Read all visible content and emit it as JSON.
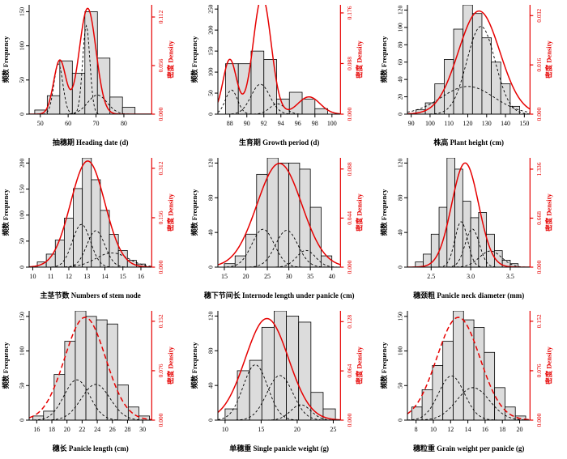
{
  "figure": {
    "description": "3x3 grid of trait frequency histograms with fitted density curves",
    "background": "#ffffff",
    "colors": {
      "bar_fill": "#dcdcdc",
      "bar_stroke": "#000000",
      "density_color": "#e60000",
      "component_color": "#000000",
      "axis_color": "#000000",
      "right_axis_color": "#e60000"
    },
    "ylabel_left": "频数 Frequency",
    "ylabel_right": "密度 Density"
  },
  "chart_data": [
    {
      "id": "heading-date",
      "type": "histogram+density",
      "xlabel": "抽穗期 Heading date (d)",
      "ylabel_left": "频数 Frequency",
      "ylabel_right": "密度 Density",
      "xlim": [
        46,
        90
      ],
      "xticks": [
        {
          "v": 50,
          "label": "50"
        },
        {
          "v": 60,
          "label": "60"
        },
        {
          "v": 70,
          "label": "70"
        },
        {
          "v": 80,
          "label": "80"
        }
      ],
      "ylim_left": [
        0,
        160
      ],
      "yticks_left": [
        {
          "v": 0,
          "label": "0"
        },
        {
          "v": 50,
          "label": "50"
        },
        {
          "v": 100,
          "label": "100"
        },
        {
          "v": 150,
          "label": "150"
        }
      ],
      "ylim_right": [
        0,
        0.126
      ],
      "yticks_right": [
        {
          "v": 0,
          "label": "0.000"
        },
        {
          "v": 0.056,
          "label": "0.056"
        },
        {
          "v": 0.112,
          "label": "0.112"
        }
      ],
      "bars": {
        "start": 48,
        "bin_width": 4.5,
        "frequencies": [
          6,
          27,
          78,
          60,
          150,
          82,
          25,
          10
        ]
      },
      "density_curve": {
        "dashed": false,
        "components": [
          {
            "mean": 57,
            "sd": 2.2,
            "peak": 0.062
          },
          {
            "mean": 67,
            "sd": 3.0,
            "peak": 0.122
          }
        ]
      },
      "mixture_components": [
        {
          "mean": 56.5,
          "sd": 1.6,
          "peak": 0.058
        },
        {
          "mean": 66.5,
          "sd": 1.3,
          "peak": 0.102
        },
        {
          "mean": 70.5,
          "sd": 3.5,
          "peak": 0.022
        }
      ]
    },
    {
      "id": "growth-period",
      "type": "histogram+density",
      "xlabel": "生育期 Growth period (d)",
      "ylabel_left": "频数 Frequency",
      "ylabel_right": "密度 Density",
      "xlim": [
        86.6,
        101
      ],
      "xticks": [
        {
          "v": 88,
          "label": "88"
        },
        {
          "v": 90,
          "label": "90"
        },
        {
          "v": 92,
          "label": "92"
        },
        {
          "v": 94,
          "label": "94"
        },
        {
          "v": 96,
          "label": "96"
        },
        {
          "v": 98,
          "label": "98"
        },
        {
          "v": 100,
          "label": "100"
        }
      ],
      "ylim_left": [
        0,
        260
      ],
      "yticks_left": [
        {
          "v": 0,
          "label": "0"
        },
        {
          "v": 50,
          "label": "50"
        },
        {
          "v": 100,
          "label": "100"
        },
        {
          "v": 150,
          "label": "150"
        },
        {
          "v": 200,
          "label": "200"
        },
        {
          "v": 250,
          "label": "250"
        }
      ],
      "ylim_right": [
        0,
        0.19
      ],
      "yticks_right": [
        {
          "v": 0,
          "label": "0.000"
        },
        {
          "v": 0.088,
          "label": "0.088"
        },
        {
          "v": 0.176,
          "label": "0.176"
        }
      ],
      "bars": {
        "start": 87.5,
        "bin_width": 1.5,
        "frequencies": [
          120,
          120,
          150,
          130,
          36,
          52,
          36,
          13
        ]
      },
      "density_curve": {
        "dashed": false,
        "components": [
          {
            "mean": 88.0,
            "sd": 0.8,
            "peak": 0.095
          },
          {
            "mean": 91.8,
            "sd": 1.05,
            "peak": 0.205
          },
          {
            "mean": 97.3,
            "sd": 1.3,
            "peak": 0.03
          }
        ]
      },
      "mixture_components": [
        {
          "mean": 88.2,
          "sd": 0.7,
          "peak": 0.042
        },
        {
          "mean": 91.6,
          "sd": 1.1,
          "peak": 0.052
        },
        {
          "mean": 93.6,
          "sd": 0.9,
          "peak": 0.018
        }
      ]
    },
    {
      "id": "plant-height",
      "type": "histogram+density",
      "xlabel": "株高 Plant height (cm)",
      "ylabel_left": "频数 Frequency",
      "ylabel_right": "密度 Density",
      "xlim": [
        88,
        153
      ],
      "xticks": [
        {
          "v": 90,
          "label": "90"
        },
        {
          "v": 100,
          "label": "100"
        },
        {
          "v": 110,
          "label": "110"
        },
        {
          "v": 120,
          "label": "120"
        },
        {
          "v": 130,
          "label": "130"
        },
        {
          "v": 140,
          "label": "140"
        },
        {
          "v": 150,
          "label": "150"
        }
      ],
      "ylim_left": [
        0,
        126
      ],
      "yticks_left": [
        {
          "v": 0,
          "label": "0"
        },
        {
          "v": 20,
          "label": "20"
        },
        {
          "v": 40,
          "label": "40"
        },
        {
          "v": 60,
          "label": "60"
        },
        {
          "v": 80,
          "label": "80"
        },
        {
          "v": 100,
          "label": "100"
        },
        {
          "v": 120,
          "label": "120"
        }
      ],
      "ylim_right": [
        0,
        0.0355
      ],
      "yticks_right": [
        {
          "v": 0,
          "label": "0.000"
        },
        {
          "v": 0.016,
          "label": "0.016"
        },
        {
          "v": 0.032,
          "label": "0.032"
        }
      ],
      "bars": {
        "start": 92.5,
        "bin_width": 5,
        "frequencies": [
          5,
          13,
          35,
          63,
          98,
          126,
          116,
          88,
          60,
          35,
          9
        ]
      },
      "density_curve": {
        "dashed": false,
        "components": [
          {
            "mean": 126,
            "sd": 11,
            "peak": 0.0335
          }
        ]
      },
      "mixture_components": [
        {
          "mean": 127,
          "sd": 7.5,
          "peak": 0.0285
        },
        {
          "mean": 120,
          "sd": 14,
          "peak": 0.009
        }
      ]
    },
    {
      "id": "stem-node-number",
      "type": "histogram+density",
      "xlabel": "主茎节数 Numbers of stem node",
      "ylabel_left": "频数 Frequency",
      "ylabel_right": "密度 Density",
      "xlim": [
        9.8,
        16.6
      ],
      "xticks": [
        {
          "v": 10,
          "label": "10"
        },
        {
          "v": 11,
          "label": "11"
        },
        {
          "v": 12,
          "label": "12"
        },
        {
          "v": 13,
          "label": "13"
        },
        {
          "v": 14,
          "label": "14"
        },
        {
          "v": 15,
          "label": "15"
        },
        {
          "v": 16,
          "label": "16"
        }
      ],
      "ylim_left": [
        0,
        210
      ],
      "yticks_left": [
        {
          "v": 0,
          "label": "0"
        },
        {
          "v": 50,
          "label": "50"
        },
        {
          "v": 100,
          "label": "100"
        },
        {
          "v": 150,
          "label": "150"
        },
        {
          "v": 200,
          "label": "200"
        }
      ],
      "ylim_right": [
        0,
        0.345
      ],
      "yticks_right": [
        {
          "v": 0,
          "label": "0.000"
        },
        {
          "v": 0.156,
          "label": "0.156"
        },
        {
          "v": 0.312,
          "label": "0.312"
        }
      ],
      "bars": {
        "start": 10.25,
        "bin_width": 0.5,
        "frequencies": [
          10,
          25,
          52,
          94,
          151,
          210,
          168,
          109,
          63,
          32,
          13,
          6
        ]
      },
      "density_curve": {
        "dashed": false,
        "components": [
          {
            "mean": 13.05,
            "sd": 0.95,
            "peak": 0.335
          }
        ]
      },
      "mixture_components": [
        {
          "mean": 12.7,
          "sd": 0.5,
          "peak": 0.135
        },
        {
          "mean": 13.5,
          "sd": 0.5,
          "peak": 0.115
        },
        {
          "mean": 14.4,
          "sd": 0.9,
          "peak": 0.045
        }
      ]
    },
    {
      "id": "internode-length",
      "type": "histogram+density",
      "xlabel": "穗下节间长 Internode length under panicle (cm)",
      "ylabel_left": "频数 Frequency",
      "ylabel_right": "密度 Density",
      "xlim": [
        13.5,
        42
      ],
      "xticks": [
        {
          "v": 15,
          "label": "15"
        },
        {
          "v": 20,
          "label": "20"
        },
        {
          "v": 25,
          "label": "25"
        },
        {
          "v": 30,
          "label": "30"
        },
        {
          "v": 35,
          "label": "35"
        },
        {
          "v": 40,
          "label": "40"
        }
      ],
      "ylim_left": [
        0,
        126
      ],
      "yticks_left": [
        {
          "v": 0,
          "label": "0"
        },
        {
          "v": 40,
          "label": "40"
        },
        {
          "v": 80,
          "label": "80"
        },
        {
          "v": 120,
          "label": "120"
        }
      ],
      "ylim_right": [
        0,
        0.098
      ],
      "yticks_right": [
        {
          "v": 0,
          "label": "0.000"
        },
        {
          "v": 0.044,
          "label": "0.044"
        },
        {
          "v": 0.088,
          "label": "0.088"
        }
      ],
      "bars": {
        "start": 15,
        "bin_width": 2.5,
        "frequencies": [
          4,
          13,
          38,
          107,
          126,
          120,
          120,
          113,
          69,
          13
        ]
      },
      "density_curve": {
        "dashed": false,
        "components": [
          {
            "mean": 27.8,
            "sd": 5.2,
            "peak": 0.093
          }
        ]
      },
      "mixture_components": [
        {
          "mean": 24,
          "sd": 2.6,
          "peak": 0.034
        },
        {
          "mean": 29.5,
          "sd": 2.6,
          "peak": 0.033
        },
        {
          "mean": 34,
          "sd": 2.2,
          "peak": 0.015
        }
      ]
    },
    {
      "id": "panicle-neck-diameter",
      "type": "histogram+density",
      "xlabel": "穗颈粗 Panicle neck diameter (mm)",
      "ylabel_left": "频数 Frequency",
      "ylabel_right": "密度 Density",
      "xlim": [
        2.2,
        3.75
      ],
      "xticks": [
        {
          "v": 2.5,
          "label": "2.5"
        },
        {
          "v": 3.0,
          "label": "3.0"
        },
        {
          "v": 3.5,
          "label": "3.5"
        }
      ],
      "ylim_left": [
        0,
        126
      ],
      "yticks_left": [
        {
          "v": 0,
          "label": "0"
        },
        {
          "v": 40,
          "label": "40"
        },
        {
          "v": 80,
          "label": "80"
        },
        {
          "v": 120,
          "label": "120"
        }
      ],
      "ylim_right": [
        0,
        1.49
      ],
      "yticks_right": [
        {
          "v": 0,
          "label": "0.000"
        },
        {
          "v": 0.668,
          "label": "0.668"
        },
        {
          "v": 1.336,
          "label": "1.336"
        }
      ],
      "bars": {
        "start": 2.3,
        "bin_width": 0.1,
        "frequencies": [
          6,
          15,
          38,
          69,
          126,
          113,
          76,
          57,
          63,
          38,
          19,
          8,
          4
        ]
      },
      "density_curve": {
        "dashed": false,
        "components": [
          {
            "mean": 2.93,
            "sd": 0.17,
            "peak": 1.42
          }
        ]
      },
      "mixture_components": [
        {
          "mean": 2.88,
          "sd": 0.08,
          "peak": 0.62
        },
        {
          "mean": 3.02,
          "sd": 0.09,
          "peak": 0.52
        },
        {
          "mean": 3.25,
          "sd": 0.14,
          "peak": 0.22
        }
      ]
    },
    {
      "id": "panicle-length",
      "type": "histogram+density",
      "xlabel": "穗长 Panicle length (cm)",
      "ylabel_left": "频数 Frequency",
      "ylabel_right": "密度 Density",
      "xlim": [
        15,
        31.2
      ],
      "xticks": [
        {
          "v": 16,
          "label": "16"
        },
        {
          "v": 18,
          "label": "18"
        },
        {
          "v": 20,
          "label": "20"
        },
        {
          "v": 22,
          "label": "22"
        },
        {
          "v": 24,
          "label": "24"
        },
        {
          "v": 26,
          "label": "26"
        },
        {
          "v": 28,
          "label": "28"
        },
        {
          "v": 30,
          "label": "30"
        }
      ],
      "ylim_left": [
        0,
        158
      ],
      "yticks_left": [
        {
          "v": 0,
          "label": "0"
        },
        {
          "v": 50,
          "label": "50"
        },
        {
          "v": 100,
          "label": "100"
        },
        {
          "v": 150,
          "label": "150"
        }
      ],
      "ylim_right": [
        0,
        0.168
      ],
      "yticks_right": [
        {
          "v": 0,
          "label": "0.000"
        },
        {
          "v": 0.076,
          "label": "0.076"
        },
        {
          "v": 0.152,
          "label": "0.152"
        }
      ],
      "bars": {
        "start": 15.5,
        "bin_width": 1.4,
        "frequencies": [
          6,
          13,
          66,
          114,
          158,
          150,
          145,
          139,
          51,
          19,
          6
        ]
      },
      "density_curve": {
        "dashed": true,
        "components": [
          {
            "mean": 22.4,
            "sd": 2.7,
            "peak": 0.158
          }
        ]
      },
      "mixture_components": [
        {
          "mean": 21.3,
          "sd": 1.7,
          "peak": 0.062
        },
        {
          "mean": 23.8,
          "sd": 1.9,
          "peak": 0.055
        }
      ]
    },
    {
      "id": "single-panicle-weight",
      "type": "histogram+density",
      "xlabel": "单穗重 Single panicle weight (g)",
      "ylabel_left": "频数 Frequency",
      "ylabel_right": "密度 Density",
      "xlim": [
        9,
        26
      ],
      "xticks": [
        {
          "v": 10,
          "label": "10"
        },
        {
          "v": 15,
          "label": "15"
        },
        {
          "v": 20,
          "label": "20"
        },
        {
          "v": 25,
          "label": "25"
        }
      ],
      "ylim_left": [
        0,
        126
      ],
      "yticks_left": [
        {
          "v": 0,
          "label": "0"
        },
        {
          "v": 40,
          "label": "40"
        },
        {
          "v": 80,
          "label": "80"
        },
        {
          "v": 120,
          "label": "120"
        }
      ],
      "ylim_right": [
        0,
        0.142
      ],
      "yticks_right": [
        {
          "v": 0,
          "label": "0.000"
        },
        {
          "v": 0.064,
          "label": "0.064"
        },
        {
          "v": 0.128,
          "label": "0.128"
        }
      ],
      "bars": {
        "start": 10,
        "bin_width": 1.7,
        "frequencies": [
          13,
          57,
          69,
          107,
          126,
          120,
          113,
          32,
          13
        ]
      },
      "density_curve": {
        "dashed": false,
        "components": [
          {
            "mean": 15.8,
            "sd": 3.0,
            "peak": 0.132
          }
        ]
      },
      "mixture_components": [
        {
          "mean": 14.2,
          "sd": 1.7,
          "peak": 0.072
        },
        {
          "mean": 17.6,
          "sd": 1.8,
          "peak": 0.058
        },
        {
          "mean": 20.5,
          "sd": 1.4,
          "peak": 0.02
        }
      ]
    },
    {
      "id": "grain-weight-per-panicle",
      "type": "histogram+density",
      "xlabel": "穗粒重 Grain weight per panicle (g)",
      "ylabel_left": "频数 Frequency",
      "ylabel_right": "密度 Density",
      "xlim": [
        7,
        21.2
      ],
      "xticks": [
        {
          "v": 8,
          "label": "8"
        },
        {
          "v": 10,
          "label": "10"
        },
        {
          "v": 12,
          "label": "12"
        },
        {
          "v": 14,
          "label": "14"
        },
        {
          "v": 16,
          "label": "16"
        },
        {
          "v": 18,
          "label": "18"
        },
        {
          "v": 20,
          "label": "20"
        }
      ],
      "ylim_left": [
        0,
        158
      ],
      "yticks_left": [
        {
          "v": 0,
          "label": "0"
        },
        {
          "v": 50,
          "label": "50"
        },
        {
          "v": 100,
          "label": "100"
        },
        {
          "v": 150,
          "label": "150"
        }
      ],
      "ylim_right": [
        0,
        0.168
      ],
      "yticks_right": [
        {
          "v": 0,
          "label": "0.000"
        },
        {
          "v": 0.076,
          "label": "0.076"
        },
        {
          "v": 0.152,
          "label": "0.152"
        }
      ],
      "bars": {
        "start": 7.5,
        "bin_width": 1.2,
        "frequencies": [
          19,
          44,
          79,
          114,
          158,
          145,
          134,
          98,
          47,
          19,
          6
        ]
      },
      "density_curve": {
        "dashed": true,
        "components": [
          {
            "mean": 12.9,
            "sd": 2.5,
            "peak": 0.158
          }
        ]
      },
      "mixture_components": [
        {
          "mean": 12.1,
          "sd": 1.5,
          "peak": 0.068
        },
        {
          "mean": 14.6,
          "sd": 1.9,
          "peak": 0.05
        }
      ]
    }
  ]
}
